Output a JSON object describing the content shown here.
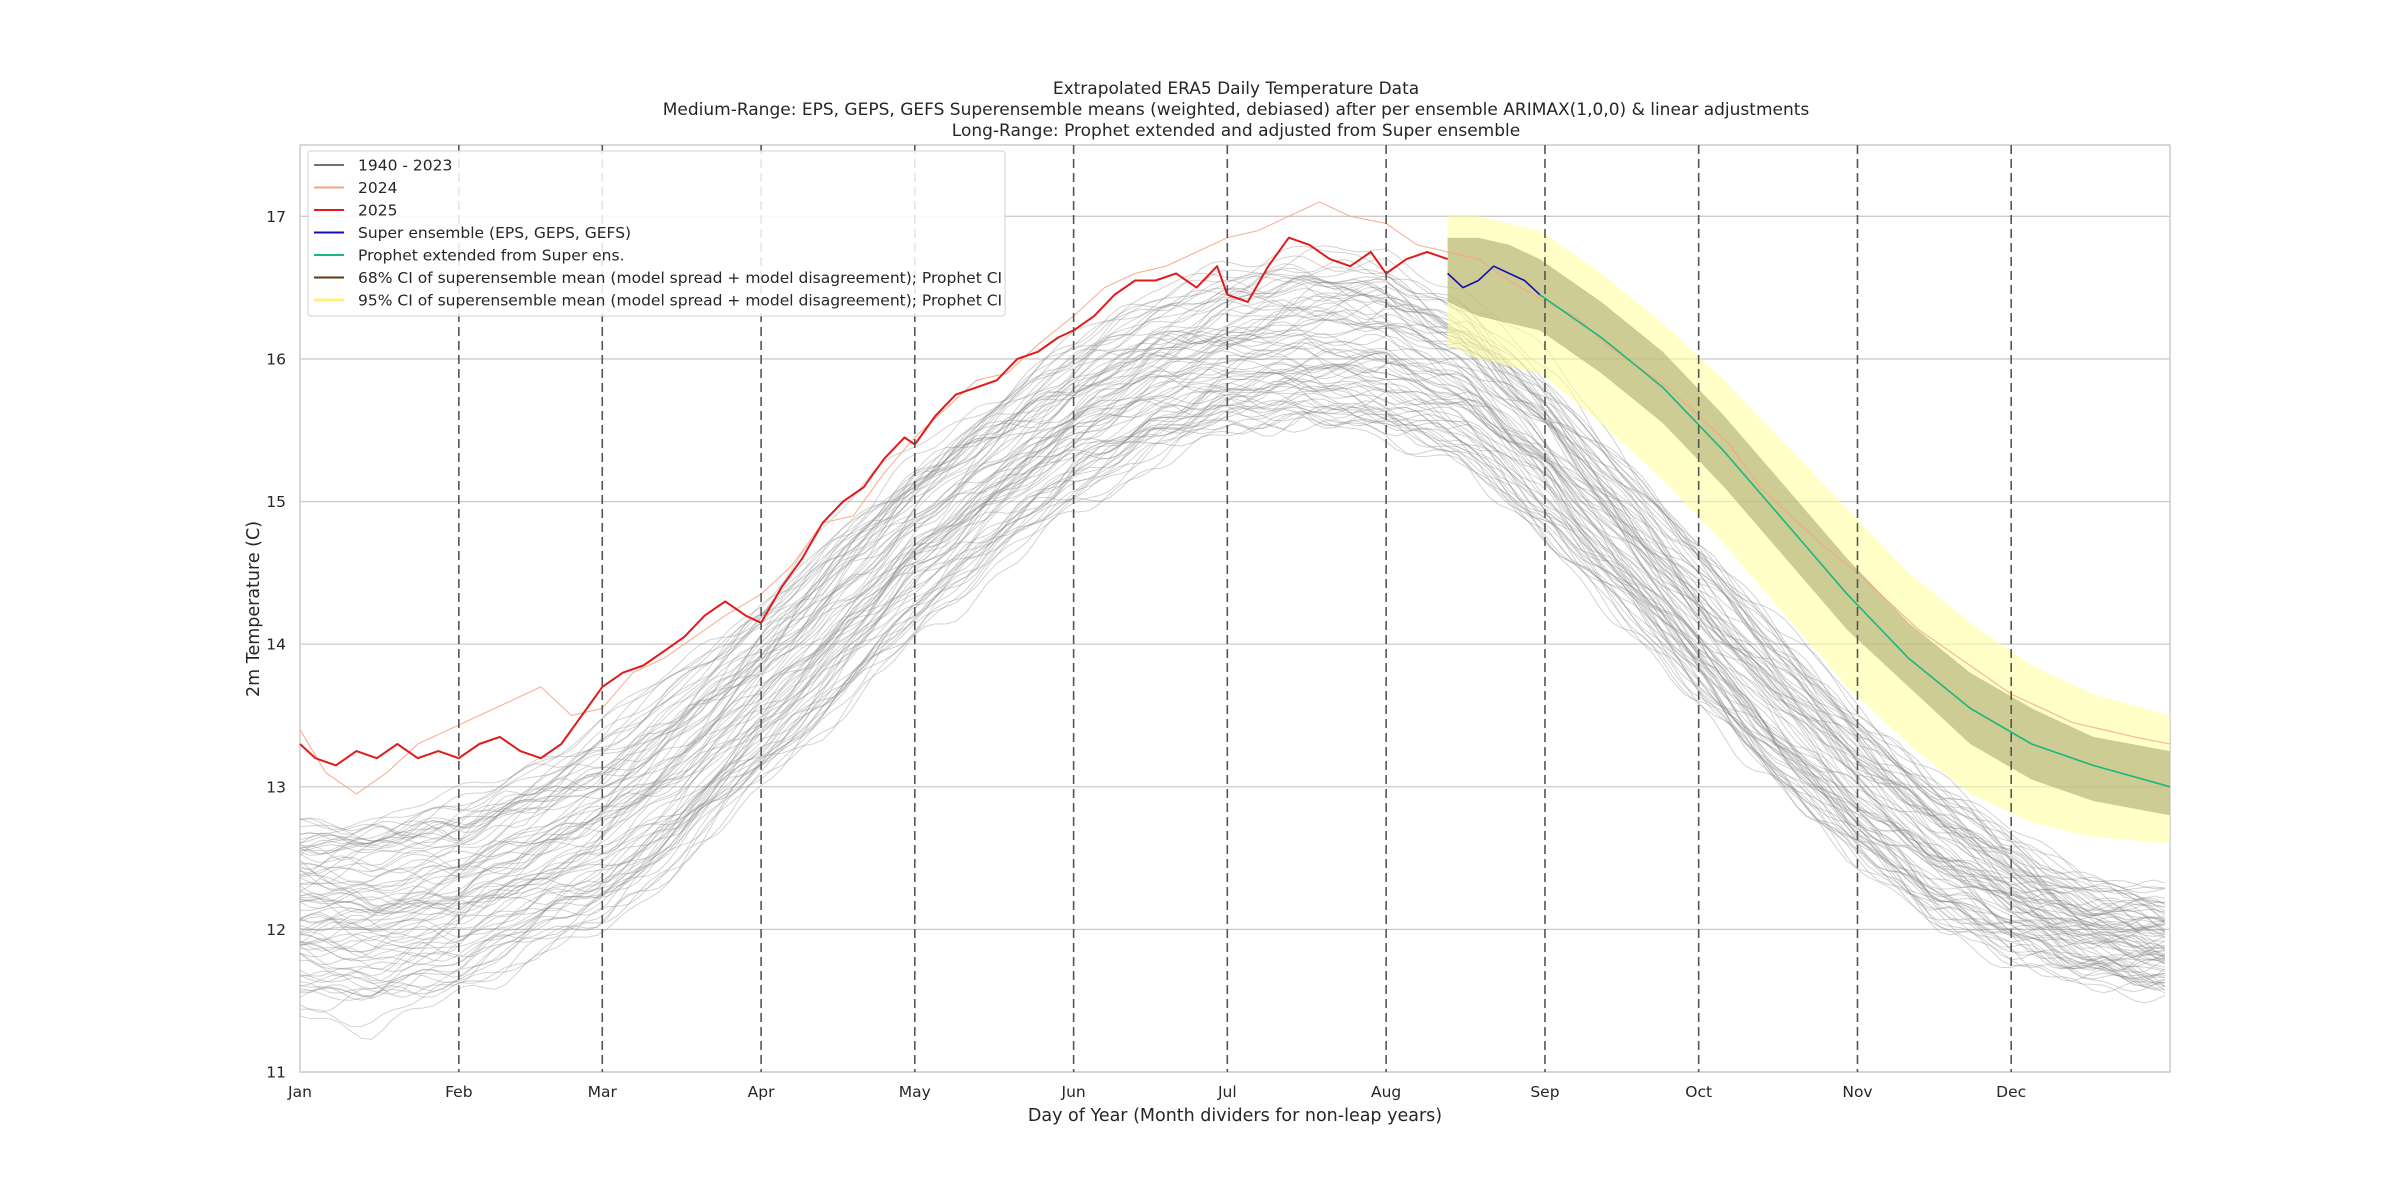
{
  "chart_data": {
    "type": "line",
    "title_lines": [
      "Extrapolated ERA5 Daily Temperature Data",
      "Medium-Range: EPS, GEPS, GEFS Superensemble means (weighted, debiased) after per ensemble ARIMAX(1,0,0) & linear adjustments",
      "Long-Range: Prophet extended and adjusted from Super ensemble"
    ],
    "xlabel": "Day of Year (Month dividers for non-leap years)",
    "ylabel": "2m Temperature (C)",
    "xlim": [
      1,
      366
    ],
    "ylim": [
      11,
      17.5
    ],
    "yticks": [
      11,
      12,
      13,
      14,
      15,
      16,
      17
    ],
    "month_ticks": [
      {
        "label": "Jan",
        "day": 1
      },
      {
        "label": "Feb",
        "day": 32
      },
      {
        "label": "Mar",
        "day": 60
      },
      {
        "label": "Apr",
        "day": 91
      },
      {
        "label": "May",
        "day": 121
      },
      {
        "label": "Jun",
        "day": 152
      },
      {
        "label": "Jul",
        "day": 182
      },
      {
        "label": "Aug",
        "day": 213
      },
      {
        "label": "Sep",
        "day": 244
      },
      {
        "label": "Oct",
        "day": 274
      },
      {
        "label": "Nov",
        "day": 305
      },
      {
        "label": "Dec",
        "day": 335
      }
    ],
    "grid": "horizontal",
    "month_dividers": "dashed",
    "legend_position": "upper-left",
    "colors": {
      "historical": "#808080",
      "y2024": "#f4a582",
      "y2025": "#e31a1c",
      "super": "#1010b0",
      "prophet": "#1ab87c",
      "ci68": "#a6a26b",
      "ci95": "#ffff99"
    },
    "legend": [
      {
        "key": "historical",
        "label": "1940 - 2023",
        "color": "#707070"
      },
      {
        "key": "y2024",
        "label": "2024",
        "color": "#f4a582"
      },
      {
        "key": "y2025",
        "label": "2025",
        "color": "#e31a1c"
      },
      {
        "key": "super",
        "label": "Super ensemble (EPS, GEPS, GEFS)",
        "color": "#1010b0"
      },
      {
        "key": "prophet",
        "label": "Prophet extended from Super ens.",
        "color": "#1ab87c"
      },
      {
        "key": "ci68",
        "label": "68% CI of superensemble mean (model spread + model disagreement); Prophet CI",
        "color": "#5a3a10"
      },
      {
        "key": "ci95",
        "label": "95% CI of superensemble mean (model spread + model disagreement); Prophet CI",
        "color": "#fff27a"
      }
    ],
    "historical_envelope": {
      "x": [
        1,
        15,
        32,
        45,
        60,
        75,
        91,
        105,
        121,
        136,
        152,
        167,
        182,
        197,
        213,
        228,
        244,
        259,
        274,
        289,
        305,
        320,
        335,
        350,
        366
      ],
      "lo": [
        11.4,
        11.35,
        11.5,
        11.7,
        11.9,
        12.3,
        12.9,
        13.4,
        14.0,
        14.5,
        14.9,
        15.2,
        15.35,
        15.4,
        15.35,
        15.2,
        14.7,
        14.1,
        13.5,
        12.9,
        12.4,
        12.0,
        11.8,
        11.6,
        11.5
      ],
      "hi": [
        12.9,
        12.9,
        13.0,
        13.2,
        13.5,
        13.9,
        14.4,
        14.9,
        15.4,
        15.8,
        16.2,
        16.5,
        16.7,
        16.8,
        16.8,
        16.5,
        16.0,
        15.4,
        14.8,
        14.2,
        13.6,
        13.1,
        12.7,
        12.4,
        12.3
      ]
    },
    "series": [
      {
        "name": "2025",
        "key": "y2025",
        "x": [
          1,
          4,
          8,
          12,
          16,
          20,
          24,
          28,
          32,
          36,
          40,
          44,
          48,
          52,
          56,
          60,
          64,
          68,
          72,
          76,
          80,
          84,
          88,
          91,
          95,
          99,
          103,
          107,
          111,
          115,
          119,
          121,
          125,
          129,
          133,
          137,
          141,
          145,
          149,
          152,
          156,
          160,
          164,
          168,
          172,
          176,
          180,
          182,
          186,
          190,
          194,
          198,
          202,
          206,
          210,
          213,
          217,
          221,
          225
        ],
        "y": [
          13.3,
          13.2,
          13.15,
          13.25,
          13.2,
          13.3,
          13.2,
          13.25,
          13.2,
          13.3,
          13.35,
          13.25,
          13.2,
          13.3,
          13.5,
          13.7,
          13.8,
          13.85,
          13.95,
          14.05,
          14.2,
          14.3,
          14.2,
          14.15,
          14.4,
          14.6,
          14.85,
          15.0,
          15.1,
          15.3,
          15.45,
          15.4,
          15.6,
          15.75,
          15.8,
          15.85,
          16.0,
          16.05,
          16.15,
          16.2,
          16.3,
          16.45,
          16.55,
          16.55,
          16.6,
          16.5,
          16.65,
          16.45,
          16.4,
          16.65,
          16.85,
          16.8,
          16.7,
          16.65,
          16.75,
          16.6,
          16.7,
          16.75,
          16.7
        ]
      },
      {
        "name": "2024",
        "key": "y2024",
        "x": [
          1,
          6,
          12,
          18,
          24,
          30,
          36,
          42,
          48,
          54,
          60,
          66,
          72,
          78,
          84,
          91,
          97,
          103,
          109,
          115,
          121,
          127,
          133,
          139,
          145,
          152,
          158,
          164,
          170,
          176,
          182,
          188,
          194,
          200,
          206,
          213,
          219,
          225,
          231,
          237,
          244,
          250,
          256,
          262,
          268,
          274,
          280,
          286,
          292,
          298,
          305,
          311,
          317,
          323,
          329,
          335,
          341,
          347,
          353,
          359,
          366
        ],
        "y": [
          13.4,
          13.1,
          12.95,
          13.1,
          13.3,
          13.4,
          13.5,
          13.6,
          13.7,
          13.5,
          13.55,
          13.8,
          13.9,
          14.05,
          14.2,
          14.35,
          14.55,
          14.85,
          14.9,
          15.2,
          15.45,
          15.65,
          15.85,
          15.9,
          16.1,
          16.3,
          16.5,
          16.6,
          16.65,
          16.75,
          16.85,
          16.9,
          17.0,
          17.1,
          17.0,
          16.95,
          16.8,
          16.75,
          16.7,
          16.55,
          16.4,
          16.3,
          16.1,
          15.95,
          15.8,
          15.6,
          15.4,
          15.1,
          14.9,
          14.7,
          14.5,
          14.3,
          14.1,
          13.95,
          13.8,
          13.65,
          13.55,
          13.45,
          13.4,
          13.35,
          13.3
        ]
      },
      {
        "name": "Super ensemble (EPS, GEPS, GEFS)",
        "key": "super",
        "x": [
          225,
          228,
          231,
          234,
          237,
          240,
          243
        ],
        "y": [
          16.6,
          16.5,
          16.55,
          16.65,
          16.6,
          16.55,
          16.45
        ]
      },
      {
        "name": "Prophet extended from Super ens.",
        "key": "prophet",
        "x": [
          243,
          255,
          267,
          279,
          291,
          303,
          315,
          327,
          339,
          351,
          366
        ],
        "y": [
          16.45,
          16.15,
          15.8,
          15.35,
          14.85,
          14.35,
          13.9,
          13.55,
          13.3,
          13.15,
          13.0
        ]
      }
    ],
    "ci95": {
      "x": [
        225,
        231,
        237,
        243,
        255,
        267,
        279,
        291,
        303,
        315,
        327,
        339,
        351,
        366
      ],
      "lo": [
        16.1,
        16.0,
        15.95,
        15.9,
        15.55,
        15.15,
        14.7,
        14.2,
        13.7,
        13.3,
        12.95,
        12.75,
        12.65,
        12.6
      ],
      "hi": [
        17.0,
        17.0,
        16.95,
        16.9,
        16.6,
        16.25,
        15.85,
        15.4,
        14.95,
        14.5,
        14.15,
        13.85,
        13.65,
        13.5
      ]
    },
    "ci68": {
      "x": [
        225,
        231,
        237,
        243,
        255,
        267,
        279,
        291,
        303,
        315,
        327,
        339,
        351,
        366
      ],
      "lo": [
        16.4,
        16.3,
        16.25,
        16.2,
        15.9,
        15.55,
        15.1,
        14.6,
        14.1,
        13.7,
        13.3,
        13.05,
        12.9,
        12.8
      ],
      "hi": [
        16.85,
        16.85,
        16.8,
        16.7,
        16.4,
        16.05,
        15.6,
        15.1,
        14.6,
        14.15,
        13.8,
        13.55,
        13.35,
        13.25
      ]
    }
  }
}
